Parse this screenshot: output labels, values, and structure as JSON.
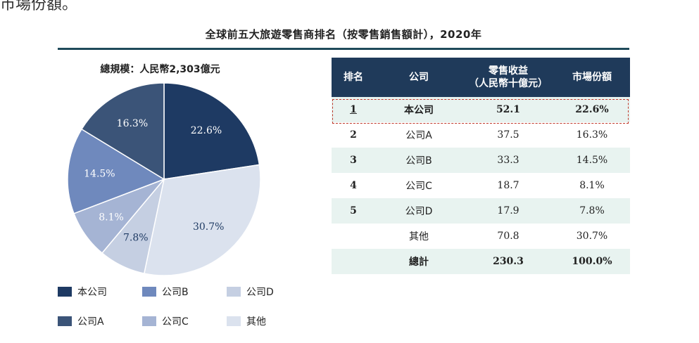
{
  "top_text": "市場份額。",
  "chart_data": [
    {
      "type": "pie",
      "title": "全球前五大旅遊零售商排名（按零售銷售額計），2020年",
      "subtitle": "總規模：人民幣2,303億元",
      "slices": [
        {
          "label": "本公司",
          "value": 22.6,
          "display": "22.6%",
          "color": "#1e3a63"
        },
        {
          "label": "其他",
          "value": 30.7,
          "display": "30.7%",
          "color": "#dbe2ee"
        },
        {
          "label": "公司D",
          "value": 7.8,
          "display": "7.8%",
          "color": "#c5cfe2"
        },
        {
          "label": "公司C",
          "value": 8.1,
          "display": "8.1%",
          "color": "#a5b4d4"
        },
        {
          "label": "公司B",
          "value": 14.5,
          "display": "14.5%",
          "color": "#6f89bd"
        },
        {
          "label": "公司A",
          "value": 16.3,
          "display": "16.3%",
          "color": "#3b5478"
        }
      ],
      "legend_items": [
        {
          "label": "本公司",
          "color": "#1e3a63"
        },
        {
          "label": "公司B",
          "color": "#6f89bd"
        },
        {
          "label": "公司D",
          "color": "#c5cfe2"
        },
        {
          "label": "公司A",
          "color": "#3b5478"
        },
        {
          "label": "公司C",
          "color": "#a5b4d4"
        },
        {
          "label": "其他",
          "color": "#dbe2ee"
        }
      ]
    },
    {
      "type": "table",
      "headers": [
        "排名",
        "公司",
        "零售收益\n（人民幣十億元）",
        "市場份額"
      ],
      "rows": [
        {
          "rank": "1",
          "company": "本公司",
          "revenue": "52.1",
          "share": "22.6%"
        },
        {
          "rank": "2",
          "company": "公司A",
          "revenue": "37.5",
          "share": "16.3%"
        },
        {
          "rank": "3",
          "company": "公司B",
          "revenue": "33.3",
          "share": "14.5%"
        },
        {
          "rank": "4",
          "company": "公司C",
          "revenue": "18.7",
          "share": "8.1%"
        },
        {
          "rank": "5",
          "company": "公司D",
          "revenue": "17.9",
          "share": "7.8%"
        },
        {
          "rank": "",
          "company": "其他",
          "revenue": "70.8",
          "share": "30.7%"
        },
        {
          "rank": "",
          "company": "總計",
          "revenue": "230.3",
          "share": "100.0%"
        }
      ]
    }
  ]
}
